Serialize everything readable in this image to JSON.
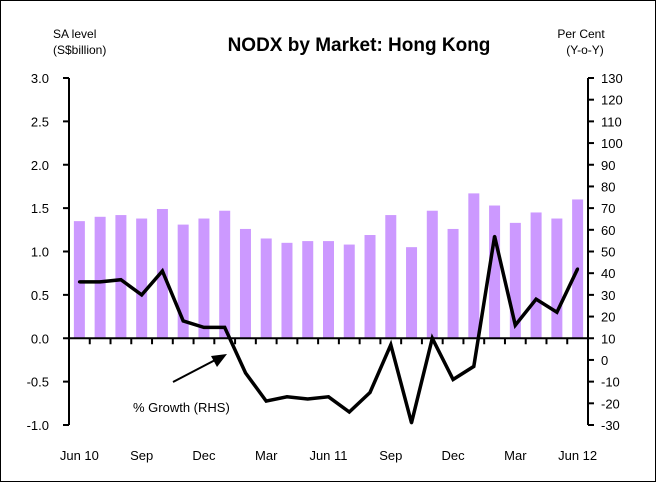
{
  "chart_data": {
    "type": "bar+line",
    "title": "NODX by Market: Hong Kong",
    "left_axis_label": [
      "SA level",
      "(S$billion)"
    ],
    "right_axis_label": [
      "Per Cent",
      "(Y-o-Y)"
    ],
    "left_ylim": [
      -1.0,
      3.0
    ],
    "left_ticks": [
      "3.0",
      "2.5",
      "2.0",
      "1.5",
      "1.0",
      "0.5",
      "0.0",
      "-0.5",
      "-1.0"
    ],
    "right_ylim": [
      -30,
      130
    ],
    "right_ticks": [
      "130",
      "120",
      "110",
      "100",
      "90",
      "80",
      "70",
      "60",
      "50",
      "40",
      "30",
      "20",
      "10",
      "0",
      "-10",
      "-20",
      "-30"
    ],
    "x_tick_labels": [
      "Jun 10",
      "Sep",
      "Dec",
      "Mar",
      "Jun 11",
      "Sep",
      "Dec",
      "Mar",
      "Jun 12"
    ],
    "bar_series": {
      "name": "SA level (LHS)",
      "color": "#cc99ff",
      "values": [
        1.35,
        1.4,
        1.42,
        1.38,
        1.49,
        1.31,
        1.38,
        1.47,
        1.26,
        1.15,
        1.1,
        1.12,
        1.12,
        1.08,
        1.19,
        1.42,
        1.05,
        1.47,
        1.26,
        1.67,
        1.53,
        1.33,
        1.45,
        1.38,
        1.6
      ]
    },
    "line_series": {
      "name": "% Growth (RHS)",
      "color": "#000000",
      "values": [
        36,
        36,
        37,
        30,
        41,
        18,
        15,
        15,
        -6,
        -19,
        -17,
        -18,
        -17,
        -24,
        -15,
        7,
        -29,
        10,
        -9,
        -3,
        57,
        16,
        28,
        22,
        42
      ]
    },
    "annotation": "% Growth  (RHS)"
  }
}
